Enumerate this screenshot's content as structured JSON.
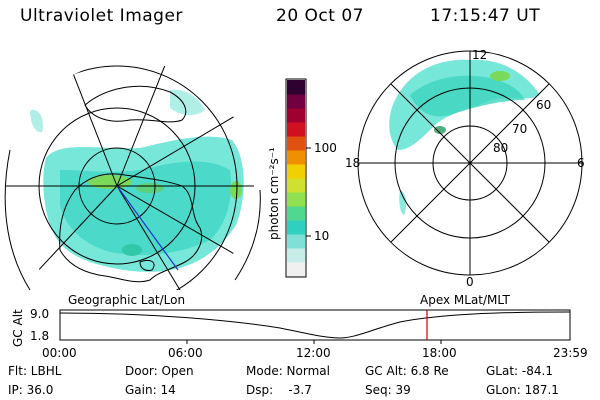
{
  "header": {
    "title": "Ultraviolet Imager",
    "date": "20 Oct 07",
    "time": "17:15:47 UT"
  },
  "colorbar": {
    "label": "photon cm⁻²s⁻¹",
    "ticks": [
      "100",
      "10"
    ],
    "colors": [
      "#f0f0f0",
      "#c8ece8",
      "#80e0d8",
      "#30d0c0",
      "#50d890",
      "#90e050",
      "#d0e030",
      "#f0d000",
      "#f09000",
      "#e05010",
      "#d01020",
      "#a00030",
      "#700040",
      "#300030"
    ]
  },
  "right_panel": {
    "mlt_labels": {
      "top": "12",
      "left": "18",
      "right": "6",
      "bottom": "0"
    },
    "lat_labels": [
      "60",
      "70",
      "80"
    ]
  },
  "timeline": {
    "left_label": "Geographic Lat/Lon",
    "right_label": "Apex MLat/MLT",
    "ylabel": "GC Alt",
    "yticks": [
      "9.0",
      "1.8"
    ],
    "xticks": [
      "00:00",
      "06:00",
      "12:00",
      "18:00",
      "23:59"
    ],
    "marker_color": "#d00000"
  },
  "info": {
    "row1": [
      {
        "key": "Flt: LBHL"
      },
      {
        "key": "Door: Open"
      },
      {
        "key": "Mode: Normal"
      },
      {
        "key": "GC Alt: 6.8 Re"
      },
      {
        "key": "GLat: -84.1"
      }
    ],
    "row2": [
      {
        "key": "IP: 36.0"
      },
      {
        "key": "Gain: 14"
      },
      {
        "key": "Dsp:    -3.7"
      },
      {
        "key": "Seq: 39"
      },
      {
        "key": "GLon: 187.1"
      }
    ]
  }
}
